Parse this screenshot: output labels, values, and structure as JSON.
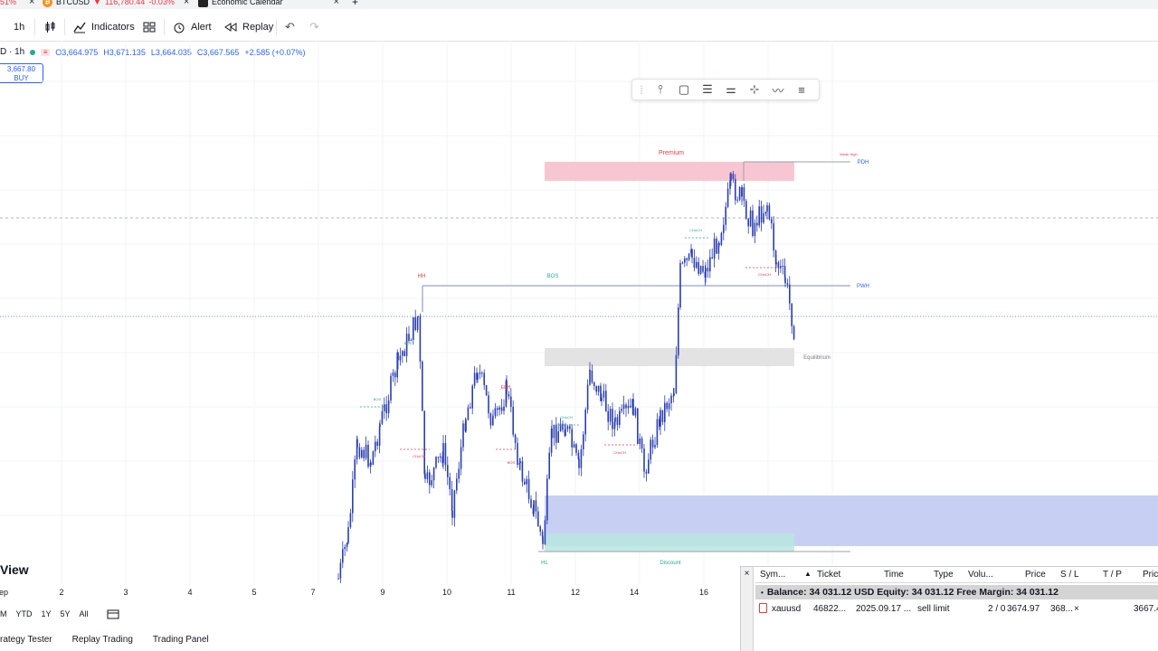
{
  "tabs": [
    {
      "label": "51%",
      "close": "×"
    },
    {
      "label": "BTCUSD",
      "price": "116,780.44",
      "change": "-0.03%",
      "close": "×"
    },
    {
      "label": "Economic Calendar",
      "close": "×"
    },
    {
      "label": "+"
    }
  ],
  "toolbar": {
    "interval": "1h",
    "indicators": "Indicators",
    "alert": "Alert",
    "replay": "Replay"
  },
  "legend": {
    "symbol": "D · 1h",
    "open": "O3,664.975",
    "high": "H3,671.135",
    "low": "L3,664.035",
    "close": "C3,667.565",
    "change": "+2.585 (+0.07%)"
  },
  "buy_box": {
    "price": "3,667.80",
    "label": "BUY"
  },
  "chart_labels": {
    "premium": "Premium",
    "weak_high": "Weak High",
    "pdh": "PDH",
    "pwh": "PWH",
    "hh": "HH",
    "bos": "BOS",
    "equilibrium": "Equilibrium",
    "discount": "Discount",
    "hl": "HL",
    "choch": "CHoCH",
    "eqh": "EQH"
  },
  "x_axis": [
    "ep",
    "2",
    "3",
    "4",
    "5",
    "7",
    "9",
    "10",
    "11",
    "12",
    "14",
    "16"
  ],
  "ranges": [
    "M",
    "YTD",
    "1Y",
    "5Y",
    "All"
  ],
  "logo_text": "View",
  "bottom_tabs": [
    "rategy Tester",
    "Replay Trading",
    "Trading Panel"
  ],
  "terminal": {
    "close": "×",
    "headers": [
      "Sym...",
      "Ticket",
      "Time",
      "Type",
      "Volu...",
      "Price",
      "S / L",
      "T / P",
      "Pric"
    ],
    "balance": "Balance: 34 031.12 USD  Equity: 34 031.12  Free Margin: 34 031.12",
    "row": {
      "symbol": "xauusd",
      "ticket": "46822...",
      "time": "2025.09.17 ...",
      "type": "sell limit",
      "volume": "2 / 0",
      "price": "3674.97",
      "sl": "368...",
      "x": "×",
      "cur": "3667.4"
    }
  },
  "colors": {
    "candle": "#2a3eb1",
    "premium_zone": "#f8c6d2",
    "equilibrium_zone": "#e3e3e3",
    "discount_zone": "#c7d0f2",
    "hl_zone": "#b9e6e0",
    "bull_label": "#22ab94",
    "bear_label": "#f23645"
  }
}
